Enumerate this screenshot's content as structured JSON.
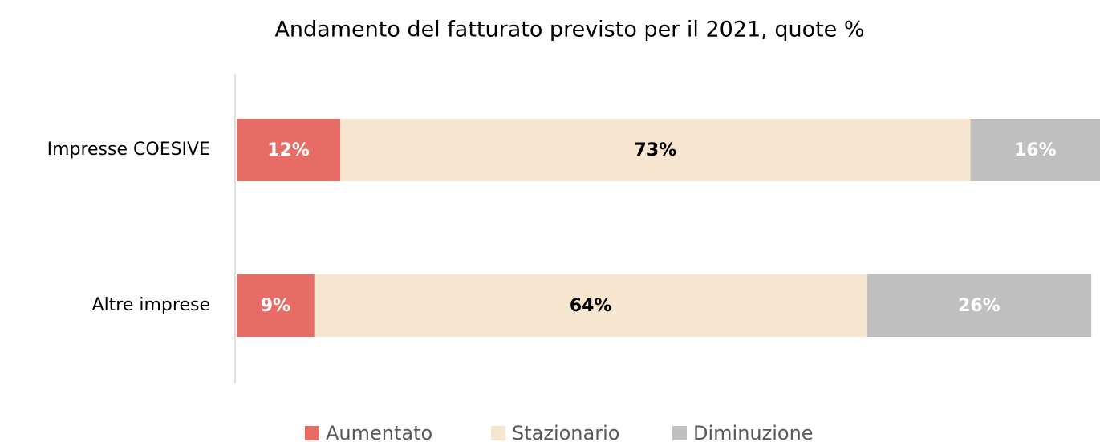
{
  "chart_data": {
    "type": "stacked-bar-horizontal",
    "title": "Andamento del fatturato previsto per il 2021, quote %",
    "categories": [
      "Impresse COESIVE",
      "Altre imprese"
    ],
    "series": [
      {
        "name": "Aumentato",
        "color": "#e66c65",
        "values": [
          12,
          9
        ],
        "value_labels": [
          "12%",
          "9%"
        ]
      },
      {
        "name": "Stazionario",
        "color": "#f7e6cf",
        "values": [
          73,
          64
        ],
        "value_labels": [
          "73%",
          "64%"
        ]
      },
      {
        "name": "Diminuzione",
        "color": "#bfbfbf",
        "values": [
          16,
          26
        ],
        "value_labels": [
          "16%",
          "26%"
        ]
      }
    ],
    "xlim": [
      0,
      100
    ],
    "legend": "bottom"
  }
}
